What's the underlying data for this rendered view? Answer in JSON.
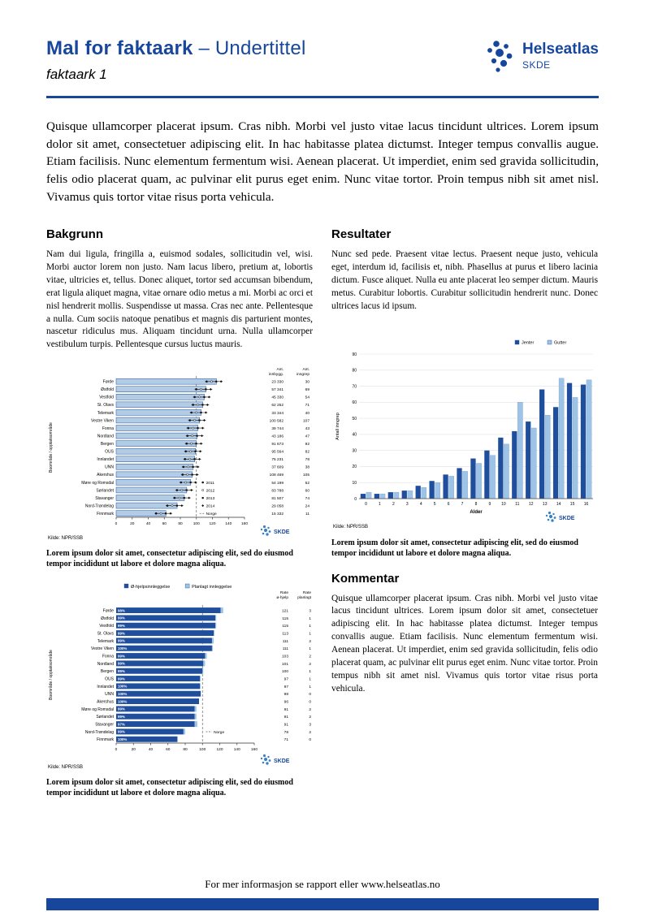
{
  "header": {
    "title_strong": "Mal for faktaark",
    "title_rest": " – Undertittel",
    "subtitle": "faktaark 1",
    "logo_name": "Helseatlas",
    "logo_sub": "SKDE"
  },
  "branding": {
    "skde": "SKDE"
  },
  "intro": "Quisque ullamcorper placerat ipsum. Cras nibh. Morbi vel justo vitae lacus tincidunt ultrices. Lorem ipsum dolor sit amet, consectetuer adipiscing elit. In hac habitasse platea dictumst. Integer tempus convallis augue. Etiam facilisis. Nunc elementum fermentum wisi. Aenean placerat. Ut imperdiet, enim sed gravida sollicitudin, felis odio placerat quam, ac pulvinar elit purus eget enim. Nunc vitae tortor. Proin tempus nibh sit amet nisl. Vivamus quis tortor vitae risus porta vehicula.",
  "sections": {
    "bakgrunn": {
      "heading": "Bakgrunn",
      "body": "Nam dui ligula, fringilla a, euismod sodales, sollicitudin vel, wisi. Morbi auctor lorem non justo. Nam lacus libero, pretium at, lobortis vitae, ultricies et, tellus. Donec aliquet, tortor sed accumsan bibendum, erat ligula aliquet magna, vitae ornare odio metus a mi. Morbi ac orci et nisl hendrerit mollis. Suspendisse ut massa. Cras nec ante. Pellentesque a nulla. Cum sociis natoque penatibus et magnis dis parturient montes, nascetur ridiculus mus. Aliquam tincidunt urna. Nulla ullamcorper vestibulum turpis. Pellentesque cursus luctus mauris."
    },
    "resultater": {
      "heading": "Resultater",
      "body": "Nunc sed pede. Praesent vitae lectus. Praesent neque justo, vehicula eget, interdum id, facilisis et, nibh. Phasellus at purus et libero lacinia dictum. Fusce aliquet. Nulla eu ante placerat leo semper dictum. Mauris metus. Curabitur lobortis. Curabitur sollicitudin hendrerit nunc. Donec ultrices lacus id ipsum."
    },
    "kommentar": {
      "heading": "Kommentar",
      "body": "Quisque ullamcorper placerat ipsum. Cras nibh. Morbi vel justo vitae lacus tincidunt ultrices. Lorem ipsum dolor sit amet, consectetuer adipiscing elit. In hac habitasse platea dictumst. Integer tempus convallis augue. Etiam facilisis. Nunc elementum fermentum wisi. Aenean placerat. Ut imperdiet, enim sed gravida sollicitudin, felis odio placerat quam, ac pulvinar elit purus eget enim. Nunc vitae tortor. Proin tempus nibh sit amet nisl. Vivamus quis tortor vitae risus porta vehicula."
    }
  },
  "captions": {
    "fig1": "Lorem ipsum dolor sit amet, consectetur adipiscing elit, sed do eiusmod tempor incididunt ut labore et dolore magna aliqua.",
    "fig2": "Lorem ipsum dolor sit amet, consectetur adipiscing elit, sed do eiusmod tempor incididunt ut labore et dolore magna aliqua.",
    "fig3": "Lorem ipsum dolor sit amet, consectetur adipiscing elit, sed do eiusmod tempor incididunt ut labore et dolore magna aliqua."
  },
  "footer": {
    "text": "For mer informasjon se rapport eller www.helseatlas.no"
  },
  "chart_data": [
    {
      "type": "bar",
      "orientation": "horizontal",
      "name": "rate-by-region",
      "ylabel": "Boområde / opptaksområde",
      "xlim": [
        0,
        160
      ],
      "xticks": [
        0,
        20,
        40,
        60,
        80,
        100,
        120,
        140,
        160
      ],
      "reference_value": 100,
      "bar_color": "#b3cce6",
      "col_headers": [
        [
          "Ant.",
          "innbygg."
        ],
        [
          "Ant.",
          "inngrep"
        ]
      ],
      "legend_years": [
        "2011",
        "2012",
        "2013",
        "2014"
      ],
      "legend_reference": "Norge",
      "source": "Kilde: NPR/SSB",
      "rows": [
        {
          "name": "Førde",
          "rate": 125,
          "innbygg": "23 330",
          "inngrep": "30"
        },
        {
          "name": "Østfold",
          "rate": 112,
          "innbygg": "57 341",
          "inngrep": "69"
        },
        {
          "name": "Vestfold",
          "rate": 110,
          "innbygg": "45 330",
          "inngrep": "54"
        },
        {
          "name": "St. Olavs",
          "rate": 108,
          "innbygg": "62 252",
          "inngrep": "71"
        },
        {
          "name": "Telemark",
          "rate": 106,
          "innbygg": "33 344",
          "inngrep": "40"
        },
        {
          "name": "Vestre Viken",
          "rate": 104,
          "innbygg": "100 582",
          "inngrep": "107"
        },
        {
          "name": "Fonna",
          "rate": 102,
          "innbygg": "39 744",
          "inngrep": "43"
        },
        {
          "name": "Nordland",
          "rate": 101,
          "innbygg": "43 186",
          "inngrep": "47"
        },
        {
          "name": "Bergen",
          "rate": 100,
          "innbygg": "91 673",
          "inngrep": "92"
        },
        {
          "name": "OUS",
          "rate": 99,
          "innbygg": "95 564",
          "inngrep": "82"
        },
        {
          "name": "Innlandet",
          "rate": 98,
          "innbygg": "75 231",
          "inngrep": "78"
        },
        {
          "name": "UNN",
          "rate": 96,
          "innbygg": "37 609",
          "inngrep": "38"
        },
        {
          "name": "Akershus",
          "rate": 95,
          "innbygg": "108 469",
          "inngrep": "105"
        },
        {
          "name": "Møre og Romsdal",
          "rate": 93,
          "innbygg": "54 199",
          "inngrep": "52"
        },
        {
          "name": "Sørlandet",
          "rate": 88,
          "innbygg": "83 788",
          "inngrep": "60"
        },
        {
          "name": "Stavanger",
          "rate": 85,
          "innbygg": "81 507",
          "inngrep": "74"
        },
        {
          "name": "Nord-Trøndelag",
          "rate": 76,
          "innbygg": "29 058",
          "inngrep": "24"
        },
        {
          "name": "Finnmark",
          "rate": 62,
          "innbygg": "15 332",
          "inngrep": "11"
        }
      ]
    },
    {
      "type": "bar",
      "orientation": "vertical",
      "name": "age-distribution",
      "categories": [
        "0",
        "1",
        "2",
        "3",
        "4",
        "5",
        "6",
        "7",
        "8",
        "9",
        "10",
        "11",
        "12",
        "13",
        "14",
        "15",
        "16"
      ],
      "series": [
        {
          "name": "Jenter",
          "color": "#1f4e9c",
          "values": [
            3,
            3,
            4,
            5,
            8,
            11,
            15,
            19,
            25,
            30,
            38,
            42,
            48,
            68,
            57,
            72,
            71
          ]
        },
        {
          "name": "Gutter",
          "color": "#9dc3e6",
          "values": [
            4,
            3,
            4,
            5,
            7,
            10,
            14,
            17,
            22,
            27,
            34,
            60,
            44,
            52,
            75,
            63,
            74
          ]
        }
      ],
      "xlabel": "Alder",
      "ylabel": "Antall inngrep",
      "ylim": [
        0,
        90
      ],
      "yticks": [
        0,
        10,
        20,
        30,
        40,
        50,
        60,
        70,
        80,
        90
      ],
      "grid": true,
      "legend_position": "top-right",
      "source": "Kilde: NPR/SSB"
    },
    {
      "type": "bar",
      "orientation": "horizontal",
      "stacked": true,
      "name": "admission-type",
      "ylabel": "Boområde / opptaksområde",
      "xlim": [
        0,
        160
      ],
      "xticks": [
        0,
        20,
        40,
        60,
        80,
        100,
        120,
        140,
        160
      ],
      "legend": [
        {
          "label": "Ø-hjelpsinnleggelse",
          "color": "#1f4e9c"
        },
        {
          "label": "Planlagt innleggelse",
          "color": "#9dc3e6"
        }
      ],
      "col_headers": [
        [
          "Rate",
          "ø-hjelp"
        ],
        [
          "Rate",
          "planlagt"
        ]
      ],
      "reference_label": "Norge",
      "reference_value": 100,
      "source": "Kilde: NPR/SSB",
      "rows": [
        {
          "name": "Førde",
          "pct": "98%",
          "ohjelp": 121,
          "planlagt": 3
        },
        {
          "name": "Østfold",
          "pct": "99%",
          "ohjelp": 115,
          "planlagt": 1
        },
        {
          "name": "Vestfold",
          "pct": "99%",
          "ohjelp": 115,
          "planlagt": 1
        },
        {
          "name": "St. Olavs",
          "pct": "99%",
          "ohjelp": 113,
          "planlagt": 1
        },
        {
          "name": "Telemark",
          "pct": "99%",
          "ohjelp": 111,
          "planlagt": 2
        },
        {
          "name": "Vestre Viken",
          "pct": "100%",
          "ohjelp": 111,
          "planlagt": 1
        },
        {
          "name": "Fonna",
          "pct": "99%",
          "ohjelp": 103,
          "planlagt": 2
        },
        {
          "name": "Nordland",
          "pct": "99%",
          "ohjelp": 101,
          "planlagt": 2
        },
        {
          "name": "Bergen",
          "pct": "99%",
          "ohjelp": 100,
          "planlagt": 1
        },
        {
          "name": "OUS",
          "pct": "99%",
          "ohjelp": 97,
          "planlagt": 1
        },
        {
          "name": "Innlandet",
          "pct": "100%",
          "ohjelp": 97,
          "planlagt": 1
        },
        {
          "name": "UNN",
          "pct": "100%",
          "ohjelp": 98,
          "planlagt": 0
        },
        {
          "name": "Akershus",
          "pct": "100%",
          "ohjelp": 96,
          "planlagt": 0
        },
        {
          "name": "Møre og Romsdal",
          "pct": "99%",
          "ohjelp": 91,
          "planlagt": 2
        },
        {
          "name": "Sørlandet",
          "pct": "99%",
          "ohjelp": 91,
          "planlagt": 2
        },
        {
          "name": "Stavanger",
          "pct": "97%",
          "ohjelp": 91,
          "planlagt": 3
        },
        {
          "name": "Nord-Trøndelag",
          "pct": "99%",
          "ohjelp": 78,
          "planlagt": 2
        },
        {
          "name": "Finnmark",
          "pct": "100%",
          "ohjelp": 71,
          "planlagt": 0
        }
      ]
    }
  ]
}
